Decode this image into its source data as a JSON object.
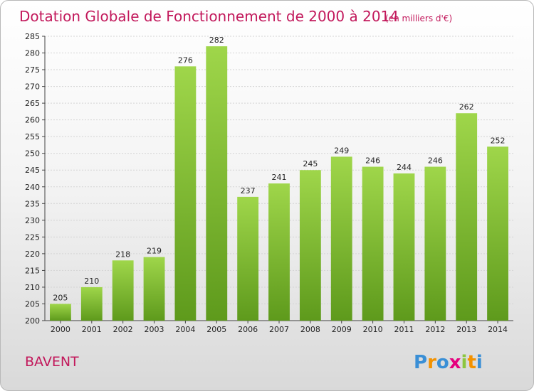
{
  "chart_data": {
    "type": "bar",
    "title": "Dotation Globale de Fonctionnement de 2000 à 2014",
    "subtitle": "(en milliers d'€)",
    "categories": [
      "2000",
      "2001",
      "2002",
      "2003",
      "2004",
      "2005",
      "2006",
      "2007",
      "2008",
      "2009",
      "2010",
      "2011",
      "2012",
      "2013",
      "2014"
    ],
    "values": [
      205,
      210,
      218,
      219,
      276,
      282,
      237,
      241,
      245,
      249,
      246,
      244,
      246,
      262,
      252
    ],
    "xlabel": "",
    "ylabel": "",
    "ylim": [
      200,
      285
    ],
    "ytick_step": 5,
    "grid": true,
    "legend": "none",
    "bar_color": "#76b82a",
    "bar_color_light": "#9fd64a",
    "bar_color_dark": "#5e9a1c"
  },
  "footer": {
    "commune": "BAVENT",
    "logo_letters": [
      "P",
      "r",
      "o",
      "x",
      "i",
      "t",
      "i"
    ],
    "logo_colors": [
      "#3a8fd6",
      "#f39200",
      "#3a8fd6",
      "#e5007e",
      "#8cc63f",
      "#f39200",
      "#3a8fd6"
    ]
  }
}
